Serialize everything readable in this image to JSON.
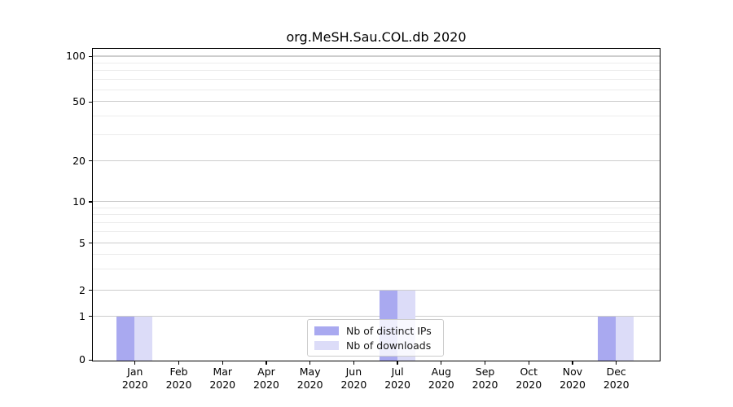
{
  "chart_data": {
    "type": "bar",
    "title": "org.MeSH.Sau.COL.db 2020",
    "categories": [
      "Jan",
      "Feb",
      "Mar",
      "Apr",
      "May",
      "Jun",
      "Jul",
      "Aug",
      "Sep",
      "Oct",
      "Nov",
      "Dec"
    ],
    "x_tick_year": "2020",
    "series": [
      {
        "name": "Nb of distinct IPs",
        "color": "#a9a9f0",
        "values": [
          1,
          0,
          0,
          0,
          0,
          0,
          2,
          0,
          0,
          0,
          0,
          1
        ]
      },
      {
        "name": "Nb of downloads",
        "color": "#dcdcf8",
        "values": [
          1,
          0,
          0,
          0,
          0,
          0,
          2,
          0,
          0,
          0,
          0,
          1
        ]
      }
    ],
    "yscale": "log-like (0, then log-spaced above 1)",
    "y_ticks": [
      0,
      1,
      2,
      5,
      10,
      20,
      50,
      100
    ],
    "y_minor_gridlines": [
      3,
      4,
      6,
      7,
      8,
      9,
      30,
      40,
      60,
      70,
      80,
      90
    ],
    "ylim": [
      0,
      110
    ],
    "xlabel": "",
    "ylabel": "",
    "grid": "horizontal",
    "legend_position": "lower center inside axes",
    "colors": {
      "axis_spine": "#000000",
      "major_grid": "#cdcdcd",
      "minor_grid": "#ececec",
      "background": "#ffffff"
    }
  }
}
